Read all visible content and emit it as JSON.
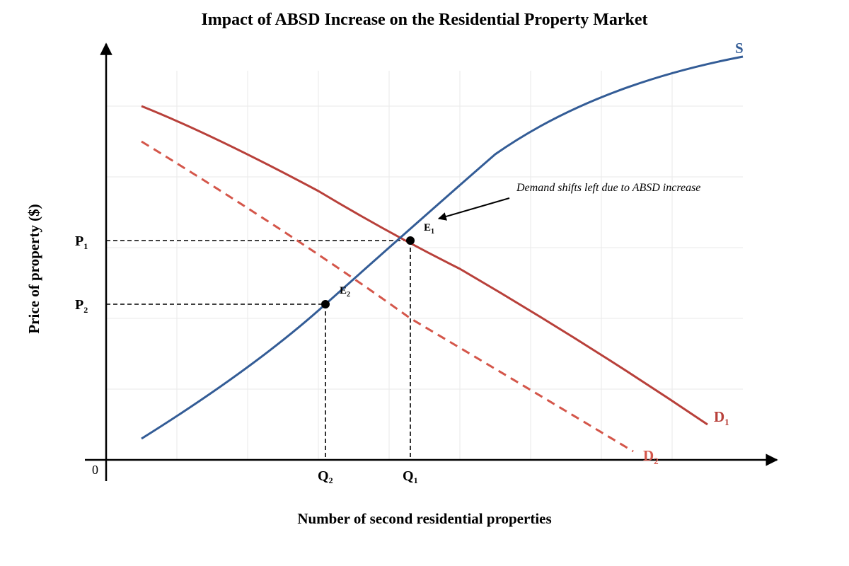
{
  "title": "Impact of ABSD Increase on the Residential Property Market",
  "axes": {
    "x_label": "Number of second residential properties",
    "y_label": "Price of property ($)",
    "origin": "0",
    "x_ticks": [
      {
        "main": "Q",
        "sub": "2"
      },
      {
        "main": "Q",
        "sub": "1"
      }
    ],
    "y_ticks": [
      {
        "main": "P",
        "sub": "1"
      },
      {
        "main": "P",
        "sub": "2"
      }
    ]
  },
  "curves": {
    "supply": {
      "main": "S",
      "sub": "",
      "color": "#335c96"
    },
    "demand1": {
      "main": "D",
      "sub": "1",
      "color": "#b8403a"
    },
    "demand2": {
      "main": "D",
      "sub": "2",
      "color": "#d4564a"
    }
  },
  "points": {
    "e1": {
      "main": "E",
      "sub": "1"
    },
    "e2": {
      "main": "E",
      "sub": "2"
    }
  },
  "annotation": "Demand shifts left due to ABSD increase",
  "colors": {
    "axis": "#000000",
    "grid": "#eaeaea"
  }
}
